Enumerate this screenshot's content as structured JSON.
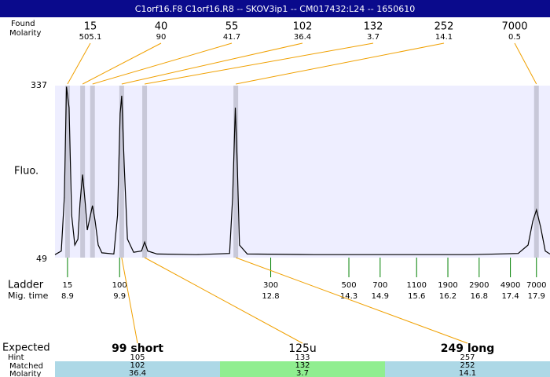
{
  "header": {
    "title": "C1orf16.F8  C1orf16.R8 -- SKOV3ip1 -- CM017432:L24 -- 1650610"
  },
  "labels": {
    "found": "Found",
    "molarity": "Molarity",
    "fluo": "Fluo.",
    "ladder": "Ladder",
    "mig_time": "Mig. time",
    "expected": "Expected",
    "hint": "Hint",
    "matched": "Matched",
    "molarity_bottom": "Molarity"
  },
  "chart_data": {
    "type": "line",
    "color": "#000000",
    "ylim": [
      49,
      337
    ],
    "yticks": [
      49,
      337
    ],
    "xlim": [
      8.66,
      18.16
    ],
    "x": [
      8.66,
      8.78,
      8.84,
      8.88,
      8.93,
      8.98,
      9.04,
      9.1,
      9.14,
      9.19,
      9.24,
      9.28,
      9.34,
      9.38,
      9.43,
      9.49,
      9.56,
      9.79,
      9.86,
      9.91,
      9.94,
      9.99,
      10.05,
      10.17,
      10.32,
      10.38,
      10.44,
      10.62,
      11.37,
      12.01,
      12.07,
      12.12,
      12.16,
      12.2,
      12.35,
      13.63,
      15.14,
      16.65,
      17.55,
      17.74,
      17.83,
      17.9,
      17.98,
      18.07,
      18.16
    ],
    "values": [
      54,
      60,
      150,
      335,
      300,
      120,
      70,
      80,
      140,
      188,
      140,
      95,
      120,
      136,
      110,
      70,
      57,
      55,
      120,
      290,
      320,
      200,
      80,
      58,
      60,
      75,
      60,
      55,
      54,
      56,
      150,
      300,
      200,
      70,
      55,
      54,
      54,
      54,
      56,
      70,
      110,
      129,
      100,
      60,
      55
    ],
    "peaks": [
      {
        "size": 15,
        "molarity": 505.1,
        "time": 8.9
      },
      {
        "size": 40,
        "molarity": 90,
        "time": 9.19
      },
      {
        "size": 55,
        "molarity": 41.7,
        "time": 9.38
      },
      {
        "size": 102,
        "molarity": 36.4,
        "time": 9.94
      },
      {
        "size": 132,
        "molarity": 3.7,
        "time": 10.38
      },
      {
        "size": 252,
        "molarity": 14.1,
        "time": 12.13
      },
      {
        "size": 7000,
        "molarity": 0.5,
        "time": 17.9
      }
    ],
    "ladder": [
      {
        "size": 15,
        "time": 8.9
      },
      {
        "size": 100,
        "time": 9.9
      },
      {
        "size": 300,
        "time": 12.8
      },
      {
        "size": 500,
        "time": 14.3
      },
      {
        "size": 700,
        "time": 14.9
      },
      {
        "size": 1100,
        "time": 15.6
      },
      {
        "size": 1900,
        "time": 16.2
      },
      {
        "size": 2900,
        "time": 16.8
      },
      {
        "size": 4900,
        "time": 17.4
      },
      {
        "size": 7000,
        "time": 17.9
      }
    ],
    "expected": [
      {
        "name": "99 short",
        "hint": 105,
        "matched": 102,
        "molarity": 36.4,
        "color": "#add8e6"
      },
      {
        "name": "125u",
        "hint": 133,
        "matched": 132,
        "molarity": 3.7,
        "color": "#90ee90"
      },
      {
        "name": "249 long",
        "hint": 257,
        "matched": 252,
        "molarity": 14.1,
        "color": "#add8e6"
      }
    ]
  }
}
